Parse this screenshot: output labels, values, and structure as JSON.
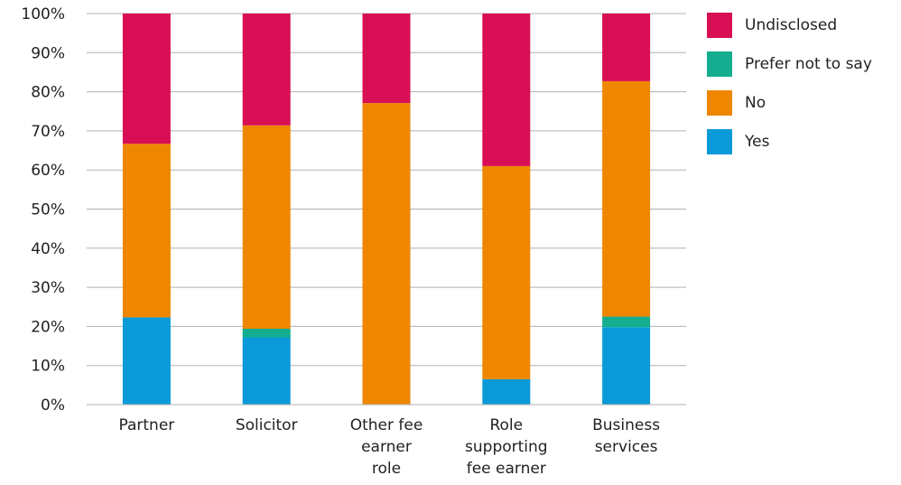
{
  "chart_data": {
    "type": "bar",
    "stacked": true,
    "percent_stacked": true,
    "title": "",
    "xlabel": "",
    "ylabel": "",
    "ylim": [
      0,
      100
    ],
    "yticks": [
      "0%",
      "10%",
      "20%",
      "30%",
      "40%",
      "50%",
      "60%",
      "70%",
      "80%",
      "90%",
      "100%"
    ],
    "grid": true,
    "legend_position": "top-right",
    "categories": [
      [
        "Partner"
      ],
      [
        "Solicitor"
      ],
      [
        "Other fee",
        "earner",
        "role"
      ],
      [
        "Role",
        "supporting",
        "fee earner"
      ],
      [
        "Business",
        "services"
      ]
    ],
    "series": [
      {
        "name": "Yes",
        "color": "#0a9ad8",
        "values": [
          22.3,
          17.2,
          0,
          6.5,
          19.8
        ]
      },
      {
        "name": "Prefer not to say",
        "color": "#14ad8f",
        "values": [
          0,
          2.2,
          0,
          0,
          2.7
        ]
      },
      {
        "name": "No",
        "color": "#ee8600",
        "values": [
          44.4,
          52.0,
          77.1,
          54.5,
          60.2
        ]
      },
      {
        "name": "Undisclosed",
        "color": "#d80f55",
        "values": [
          33.3,
          28.6,
          22.9,
          39.0,
          17.3
        ]
      }
    ],
    "legend_order": [
      "Undisclosed",
      "Prefer not to say",
      "No",
      "Yes"
    ],
    "axis_color": "#b0b0b0",
    "grid_color": "#b0b0b0"
  }
}
